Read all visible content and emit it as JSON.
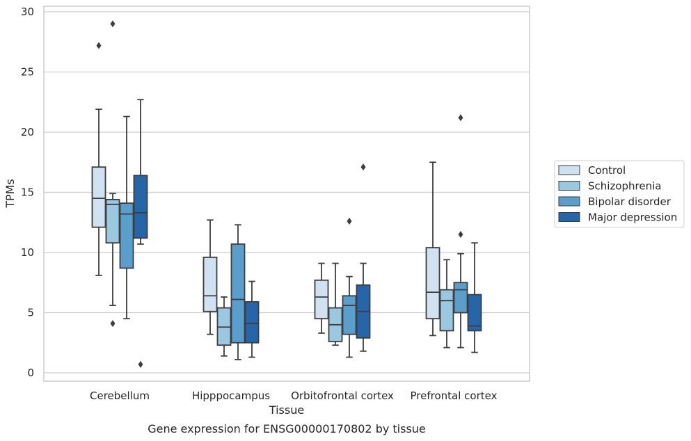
{
  "caption": "Gene expression for ENSG00000170802 by tissue",
  "chart_data": {
    "type": "box",
    "xlabel": "Tissue",
    "ylabel": "TPMs",
    "categories": [
      "Cerebellum",
      "Hipppocampus",
      "Orbitofrontal cortex",
      "Prefrontal cortex"
    ],
    "ylim": [
      -0.5,
      30.3
    ],
    "yticks": [
      0,
      5,
      10,
      15,
      20,
      25,
      30
    ],
    "grid": "horizontal",
    "legend_position": "right",
    "series": [
      {
        "name": "Control",
        "color": "#d0e1f2",
        "boxes": [
          {
            "whislo": 8.1,
            "q1": 12.1,
            "med": 14.5,
            "q3": 17.1,
            "whishi": 21.9,
            "fliers": [
              27.2
            ]
          },
          {
            "whislo": 3.2,
            "q1": 5.1,
            "med": 6.4,
            "q3": 9.6,
            "whishi": 12.7,
            "fliers": []
          },
          {
            "whislo": 3.3,
            "q1": 4.5,
            "med": 6.3,
            "q3": 7.7,
            "whishi": 9.1,
            "fliers": []
          },
          {
            "whislo": 3.1,
            "q1": 4.5,
            "med": 6.7,
            "q3": 10.4,
            "whishi": 17.5,
            "fliers": []
          }
        ]
      },
      {
        "name": "Schizophrenia",
        "color": "#9ac8e0",
        "boxes": [
          {
            "whislo": 5.6,
            "q1": 10.8,
            "med": 14.0,
            "q3": 14.4,
            "whishi": 14.9,
            "fliers": [
              29.0,
              4.1
            ]
          },
          {
            "whislo": 1.4,
            "q1": 2.3,
            "med": 3.8,
            "q3": 5.4,
            "whishi": 6.3,
            "fliers": []
          },
          {
            "whislo": 2.3,
            "q1": 2.6,
            "med": 4.0,
            "q3": 5.4,
            "whishi": 9.1,
            "fliers": []
          },
          {
            "whislo": 2.1,
            "q1": 3.5,
            "med": 6.0,
            "q3": 6.9,
            "whishi": 9.4,
            "fliers": []
          }
        ]
      },
      {
        "name": "Bipolar disorder",
        "color": "#5a9ecc",
        "boxes": [
          {
            "whislo": 4.5,
            "q1": 8.7,
            "med": 13.2,
            "q3": 14.1,
            "whishi": 21.3,
            "fliers": []
          },
          {
            "whislo": 1.1,
            "q1": 2.5,
            "med": 6.1,
            "q3": 10.7,
            "whishi": 12.3,
            "fliers": []
          },
          {
            "whislo": 1.3,
            "q1": 3.2,
            "med": 5.6,
            "q3": 6.4,
            "whishi": 8.0,
            "fliers": [
              12.6
            ]
          },
          {
            "whislo": 2.1,
            "q1": 5.0,
            "med": 6.9,
            "q3": 7.5,
            "whishi": 9.9,
            "fliers": [
              21.2,
              11.5
            ]
          }
        ]
      },
      {
        "name": "Major depression",
        "color": "#2565a8",
        "boxes": [
          {
            "whislo": 10.7,
            "q1": 11.2,
            "med": 13.3,
            "q3": 16.4,
            "whishi": 22.7,
            "fliers": [
              0.7
            ]
          },
          {
            "whislo": 1.3,
            "q1": 2.5,
            "med": 4.1,
            "q3": 5.9,
            "whishi": 7.6,
            "fliers": []
          },
          {
            "whislo": 1.8,
            "q1": 2.9,
            "med": 5.1,
            "q3": 7.3,
            "whishi": 9.1,
            "fliers": [
              17.1
            ]
          },
          {
            "whislo": 1.7,
            "q1": 3.5,
            "med": 3.9,
            "q3": 6.5,
            "whishi": 10.8,
            "fliers": []
          }
        ]
      }
    ]
  }
}
